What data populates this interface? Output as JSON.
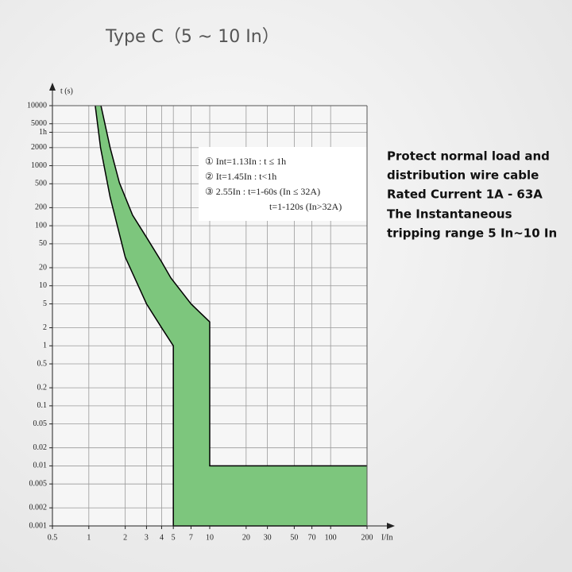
{
  "chart_data": {
    "type": "band",
    "title": "Type C（5 ~ 10 In）",
    "y_label": "t (s)",
    "x_label": "I/In",
    "log_x": true,
    "log_y": true,
    "grid": true,
    "fill_color": "#7dc67d",
    "xlim": [
      0.5,
      200
    ],
    "ylim": [
      0.001,
      10000
    ],
    "xticks": [
      0.5,
      1,
      2,
      3,
      4,
      5,
      7,
      10,
      20,
      30,
      50,
      70,
      100,
      200
    ],
    "yticks": [
      10000,
      5000,
      {
        "value": 3600,
        "label": "1h"
      },
      2000,
      1000,
      500,
      200,
      100,
      50,
      20,
      10,
      5,
      2,
      1,
      0.5,
      0.2,
      0.1,
      0.05,
      0.02,
      0.01,
      0.005,
      0.002,
      0.001
    ],
    "series": [
      {
        "color": "#000000",
        "x": [
          1.26,
          1.5,
          1.79,
          2.3,
          3.03,
          4,
          4.77,
          7,
          10,
          10,
          200
        ],
        "values": [
          10000,
          2000,
          520,
          150,
          62,
          25,
          13.5,
          5,
          2.5,
          0.01,
          0.01
        ]
      },
      {
        "color": "#000000",
        "x": [
          200,
          5,
          5,
          4,
          3,
          2,
          1.5,
          1.25,
          1.13
        ],
        "values": [
          0.001,
          0.001,
          1,
          2,
          5,
          30,
          300,
          2000,
          10000
        ]
      }
    ],
    "annotations": [
      "① Int=1.13In : t ≤ 1h",
      "② It=1.45In : t<1h",
      "③ 2.55In : t=1-60s (In ≤ 32A)",
      "t=1-120s (In>32A)"
    ],
    "description": [
      "Protect normal load and",
      "distribution wire cable",
      "Rated Current 1A - 63A",
      "The Instantaneous",
      "tripping  range 5 In~10 In"
    ]
  }
}
